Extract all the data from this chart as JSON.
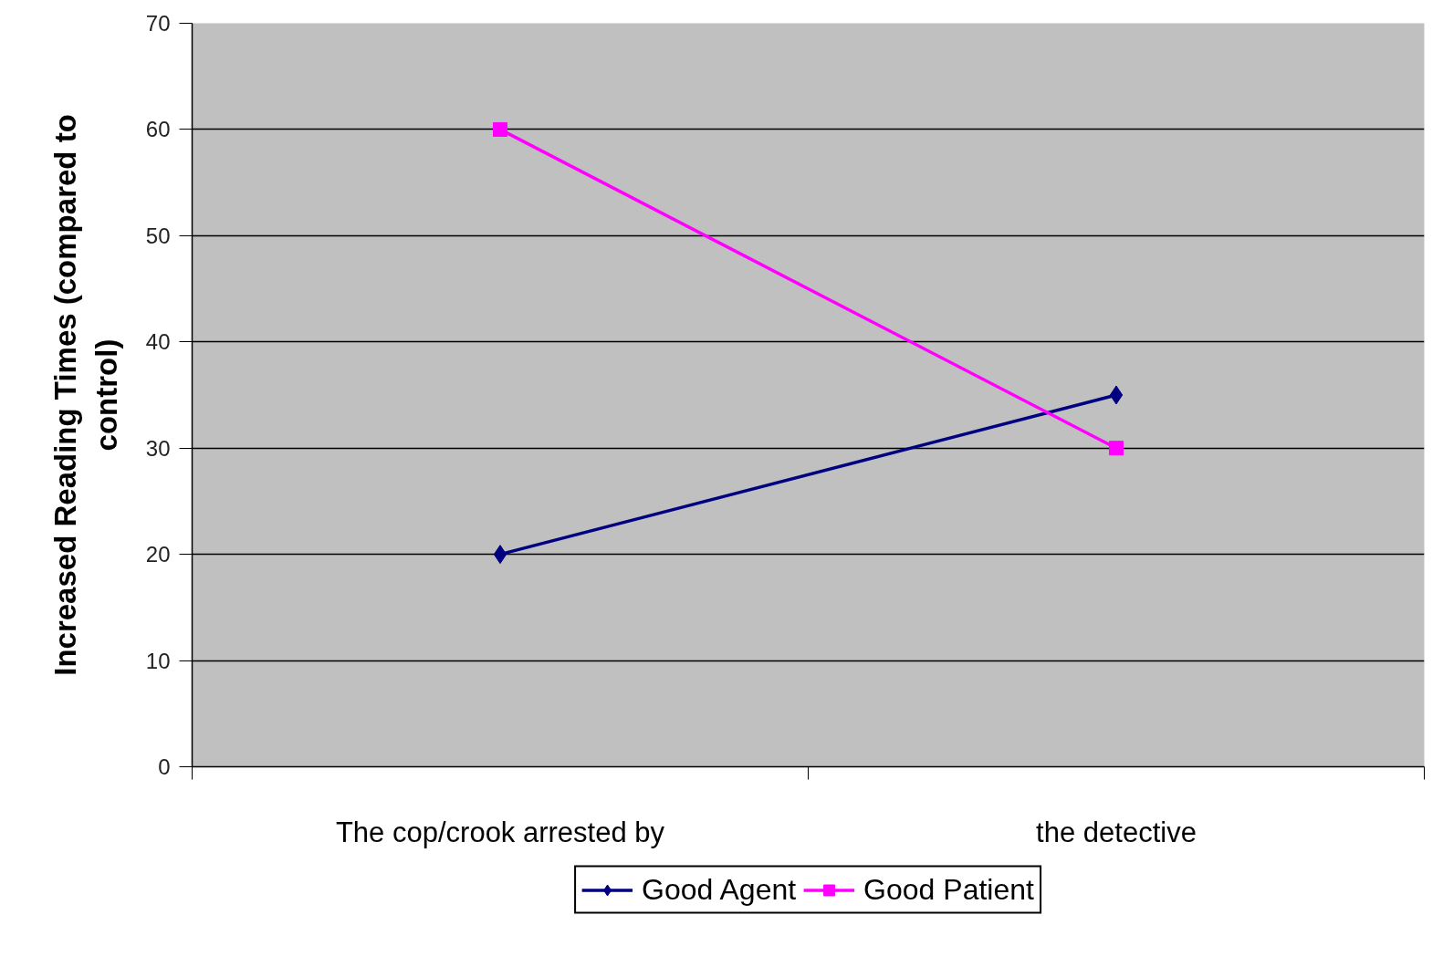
{
  "chart_data": {
    "type": "line",
    "ylabel": "Increased Reading Times (compared to control)",
    "categories": [
      "The cop/crook arrested by",
      "the detective"
    ],
    "series": [
      {
        "name": "Good Agent",
        "color": "#000080",
        "marker": "diamond",
        "values": [
          20,
          35
        ]
      },
      {
        "name": "Good Patient",
        "color": "#ff00ff",
        "marker": "square",
        "values": [
          60,
          30
        ]
      }
    ],
    "ylim": [
      0,
      70
    ],
    "yticks": [
      0,
      10,
      20,
      30,
      40,
      50,
      60,
      70
    ],
    "grid": "y",
    "legend": "bottom"
  }
}
